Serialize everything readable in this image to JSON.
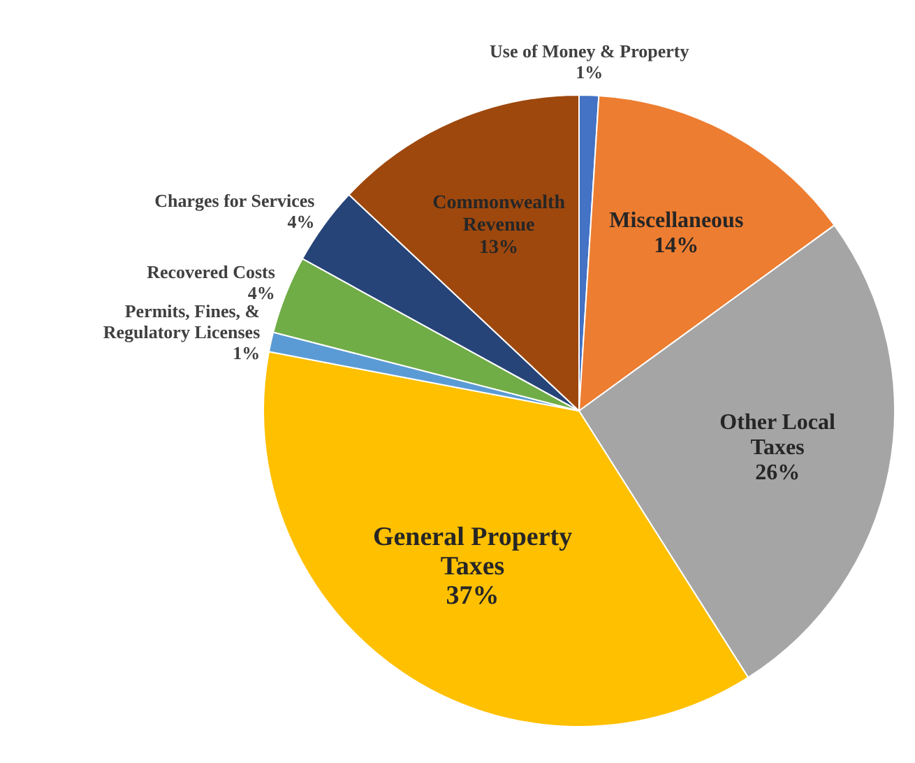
{
  "chart_data": {
    "type": "pie",
    "categories": [
      "Use of Money & Property",
      "Miscellaneous",
      "Other Local Taxes",
      "General Property Taxes",
      "Permits, Fines, & Regulatory Licenses",
      "Recovered Costs",
      "Charges for Services",
      "Commonwealth Revenue"
    ],
    "values": [
      1,
      14,
      26,
      37,
      1,
      4,
      4,
      13
    ],
    "value_labels": [
      "1%",
      "14%",
      "26%",
      "37%",
      "1%",
      "4%",
      "4%",
      "13%"
    ],
    "colors": [
      "#4472c4",
      "#ed7d31",
      "#a5a5a5",
      "#ffc000",
      "#5b9bd5",
      "#70ad47",
      "#264478",
      "#9e480e"
    ],
    "legend": false
  }
}
